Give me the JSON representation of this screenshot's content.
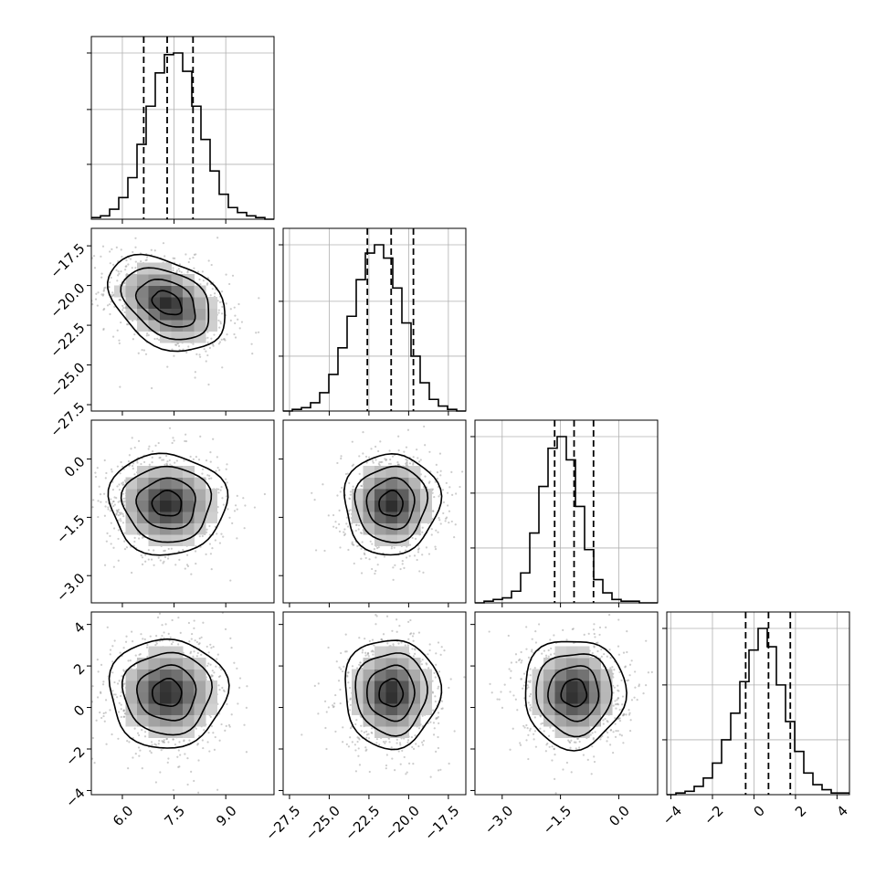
{
  "chart_data": {
    "type": "corner",
    "parameters": [
      {
        "mean": 7.3,
        "std": 0.68,
        "range": [
          5.1,
          10.4
        ],
        "ticks": [
          6.0,
          7.5,
          9.0
        ],
        "tick_labels": [
          "6.0",
          "7.5",
          "9.0"
        ],
        "quantiles": [
          6.62,
          7.3,
          8.05
        ]
      },
      {
        "mean": -21.1,
        "std": 1.2,
        "range": [
          -27.9,
          -16.4
        ],
        "ticks": [
          -27.5,
          -25.0,
          -22.5,
          -20.0,
          -17.5
        ],
        "tick_labels": [
          "−27.5",
          "−25.0",
          "−22.5",
          "−20.0",
          "−17.5"
        ],
        "quantiles": [
          -22.6,
          -21.1,
          -19.7
        ]
      },
      {
        "mean": -1.15,
        "std": 0.52,
        "range": [
          -3.7,
          1.0
        ],
        "ticks": [
          -3.0,
          -1.5,
          0.0
        ],
        "tick_labels": [
          "−3.0",
          "−1.5",
          "0.0"
        ],
        "quantiles": [
          -1.65,
          -1.15,
          -0.65
        ]
      },
      {
        "mean": 0.7,
        "std": 1.05,
        "range": [
          -4.2,
          4.6
        ],
        "ticks": [
          -4,
          -2,
          0,
          2,
          4
        ],
        "tick_labels": [
          "−4",
          "−2",
          "0",
          "2",
          "4"
        ],
        "quantiles": [
          -0.4,
          0.7,
          1.75
        ]
      }
    ],
    "histograms": [
      {
        "param": 0,
        "bins": 20,
        "counts": [
          1,
          2,
          6,
          13,
          25,
          45,
          68,
          88,
          99,
          100,
          89,
          68,
          48,
          29,
          15,
          7,
          4,
          2,
          1,
          0
        ]
      },
      {
        "param": 1,
        "bins": 20,
        "counts": [
          0,
          1,
          2,
          5,
          11,
          22,
          38,
          57,
          79,
          95,
          100,
          92,
          74,
          53,
          33,
          17,
          7,
          3,
          1,
          0
        ]
      },
      {
        "param": 2,
        "bins": 20,
        "counts": [
          0,
          1,
          2,
          3,
          7,
          18,
          42,
          70,
          93,
          100,
          86,
          58,
          32,
          14,
          6,
          2,
          1,
          1,
          0,
          0
        ]
      },
      {
        "param": 3,
        "bins": 20,
        "counts": [
          0,
          1,
          2,
          5,
          10,
          19,
          33,
          49,
          68,
          87,
          100,
          89,
          66,
          44,
          26,
          13,
          6,
          3,
          1,
          1
        ]
      }
    ],
    "pairs": [
      {
        "x": 0,
        "y": 1,
        "correlation": -0.35
      },
      {
        "x": 0,
        "y": 2,
        "correlation": -0.02
      },
      {
        "x": 1,
        "y": 2,
        "correlation": 0.02
      },
      {
        "x": 0,
        "y": 3,
        "correlation": 0.0
      },
      {
        "x": 1,
        "y": 3,
        "correlation": 0.0
      },
      {
        "x": 2,
        "y": 3,
        "correlation": 0.0
      }
    ],
    "contour_levels_sigma": [
      0.5,
      1.0,
      1.5,
      2.0
    ],
    "grid": true,
    "legend": "none"
  }
}
